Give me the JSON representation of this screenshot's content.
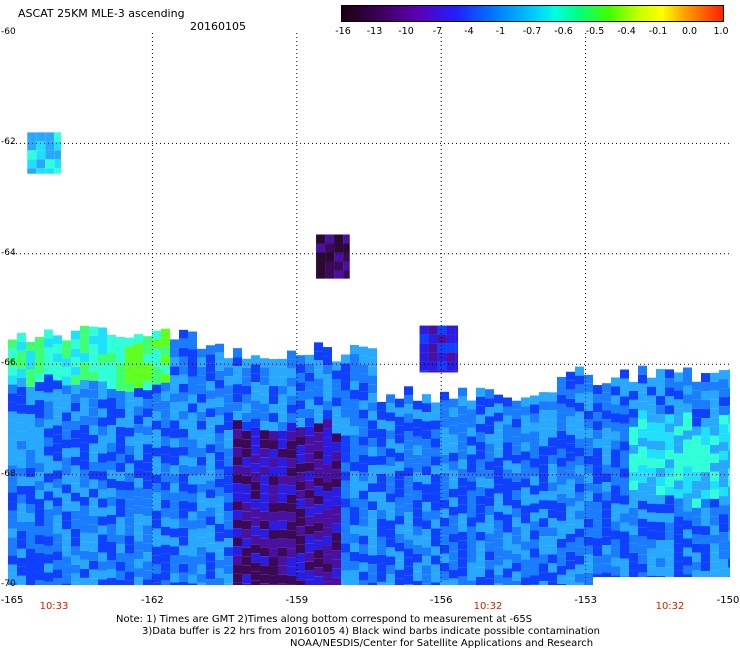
{
  "title": "ASCAT 25KM MLE-3 ascending",
  "date": "20160105",
  "colorbar": {
    "labels": [
      "-16",
      "-13",
      "-10",
      "-7",
      "-4",
      "-1",
      "-0.7",
      "-0.6",
      "-0.5",
      "-0.4",
      "-0.1",
      "0.0",
      "1.0"
    ]
  },
  "axes": {
    "y_labels": [
      "-60",
      "-62",
      "-64",
      "-66",
      "-68",
      "-70"
    ],
    "x_labels": [
      "-165",
      "-162",
      "-159",
      "-156",
      "-153",
      "-150"
    ]
  },
  "pass_times": [
    "10:33",
    "10:32",
    "10:32"
  ],
  "notes": {
    "line1": "Note: 1) Times are GMT 2)Times along bottom correspond to measurement at -65S",
    "line2": "3)Data buffer is 22 hrs from 20160105 4) Black wind barbs indicate possible contamination",
    "line3": "NOAA/NESDIS/Center for Satellite Applications and Research"
  },
  "map": {
    "lon_range": [
      -165,
      -150
    ],
    "lat_range": [
      -70,
      -60
    ],
    "palette": [
      "#2a0a30",
      "#3c0858",
      "#4a10a0",
      "#2a1ce0",
      "#1040ff",
      "#1a7cff",
      "#28a8ff",
      "#20e0ff",
      "#30ffd8",
      "#40ff70",
      "#60ff20"
    ],
    "swaths": [
      {
        "name": "patch-a",
        "lon": [
          -164.6,
          -163.9
        ],
        "lat": [
          -62.55,
          -61.8
        ],
        "level": 7
      },
      {
        "name": "patch-b",
        "lon": [
          -158.6,
          -157.9
        ],
        "lat": [
          -64.45,
          -63.65
        ],
        "level": 1
      },
      {
        "name": "patch-c",
        "lon": [
          -156.45,
          -155.65
        ],
        "lat": [
          -66.15,
          -65.3
        ],
        "level": 3
      },
      {
        "name": "main-swath",
        "lon": [
          -165,
          -150
        ],
        "lat": [
          -70,
          -65.6
        ],
        "level": 5
      }
    ]
  }
}
